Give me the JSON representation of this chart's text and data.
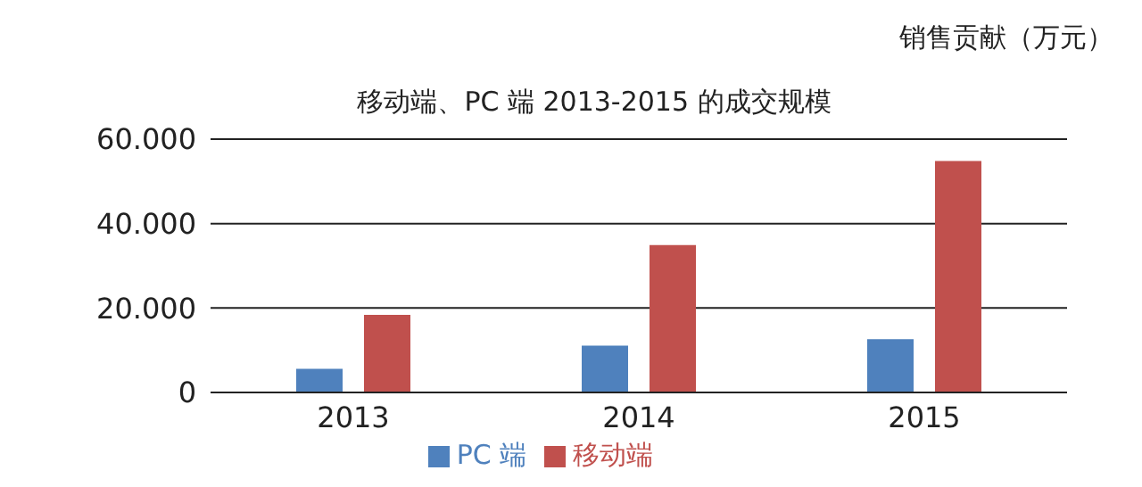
{
  "chart_data": {
    "type": "bar",
    "title": "移动端、PC 端 2013-2015 的成交规模",
    "ylabel": "销售贡献（万元）",
    "categories": [
      "2013",
      "2014",
      "2015"
    ],
    "series": [
      {
        "name": "PC 端",
        "color": "#4f81bd",
        "values": [
          5600,
          11100,
          12600
        ]
      },
      {
        "name": "移动端",
        "color": "#c0504d",
        "values": [
          18400,
          34900,
          54800
        ]
      }
    ],
    "ylim": [
      0,
      60000
    ],
    "yticks": [
      {
        "value": 0,
        "label": "0"
      },
      {
        "value": 20000,
        "label": "20.000"
      },
      {
        "value": 40000,
        "label": "40.000"
      },
      {
        "value": 60000,
        "label": "60.000"
      }
    ],
    "grid": "y",
    "legend": "bottom"
  }
}
